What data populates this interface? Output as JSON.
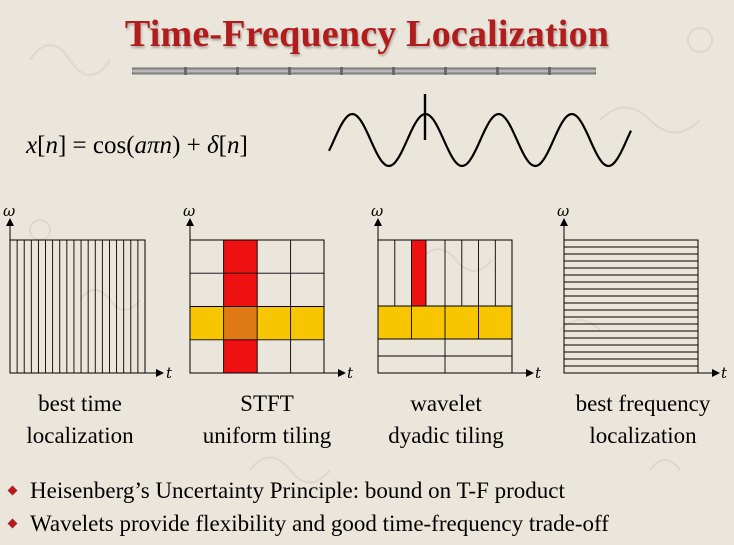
{
  "title": "Time-Frequency Localization",
  "equation": {
    "lhs_var": "x",
    "lhs_index": "n",
    "equals": "=",
    "func": "cos(",
    "arg": "aπn",
    "close": ")",
    "plus": "+",
    "delta": "δ",
    "delta_index": "n"
  },
  "signal_description": "sinusoid-with-impulse",
  "axis_labels": {
    "frequency": "ω",
    "time": "t"
  },
  "panels": [
    {
      "caption_line1": "best time",
      "caption_line2": "localization"
    },
    {
      "caption_line1": "STFT",
      "caption_line2": "uniform tiling"
    },
    {
      "caption_line1": "wavelet",
      "caption_line2": "dyadic tiling"
    },
    {
      "caption_line1": "best frequency",
      "caption_line2": "localization"
    }
  ],
  "bullets": [
    "Heisenberg’s Uncertainty Principle: bound on T-F product",
    "Wavelets provide flexibility and good time-frequency trade-off"
  ],
  "colors": {
    "title": "#b11d1d",
    "highlight_red": "#ee1111",
    "highlight_yellow": "#f7c600",
    "overlap_orange": "#df7a14",
    "bullet_marker": "#b31c1c"
  }
}
